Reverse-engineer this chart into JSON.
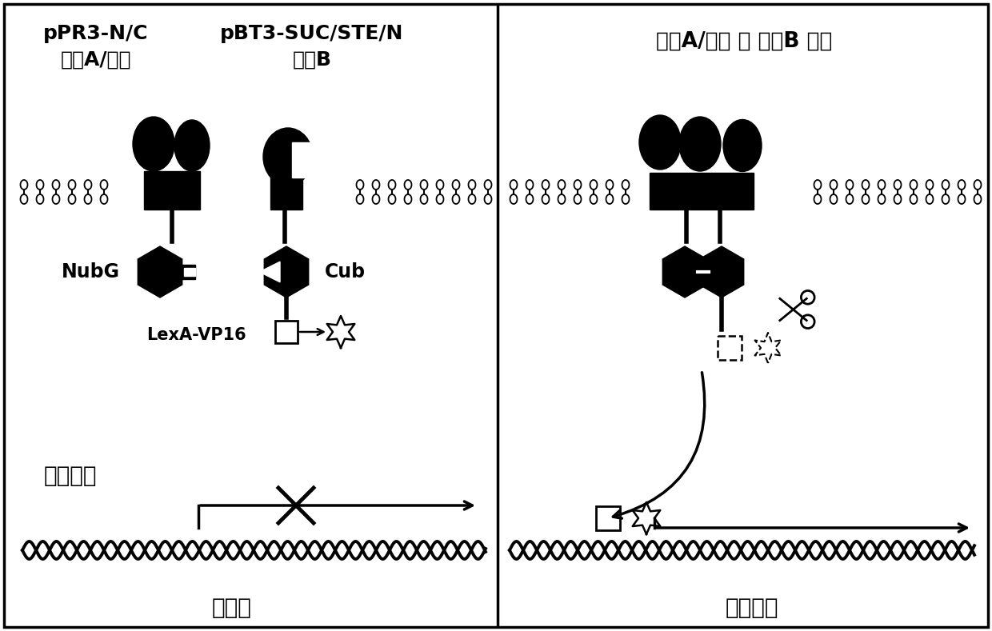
{
  "background_color": "#ffffff",
  "border_color": "#000000",
  "left_panel": {
    "label1": "pPR3-N/C",
    "label2": "蛋白A/文库",
    "label3": "pBT3-SUC/STE/N",
    "label4": "蛋白B",
    "nubg_label": "NubG",
    "cub_label": "Cub",
    "lexa_label": "LexA-VP16",
    "reporter_label": "报告基因",
    "no_transcription": "不转录"
  },
  "right_panel": {
    "title": "蛋白A/文库 和 蛋白B 互作",
    "transcription": "转录起始"
  }
}
